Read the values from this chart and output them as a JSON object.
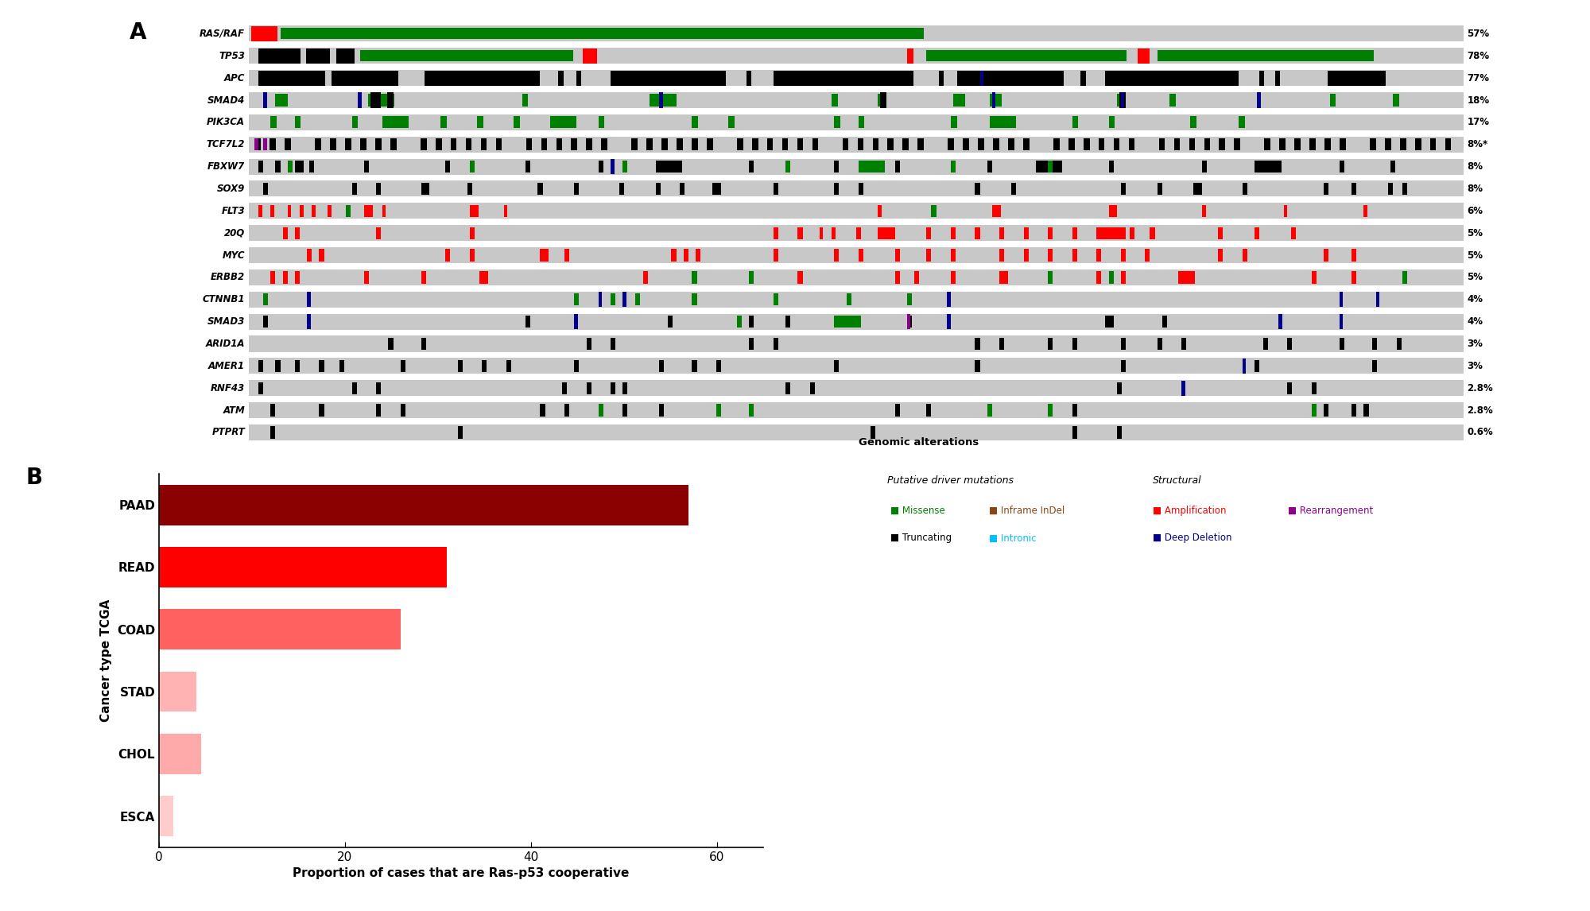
{
  "panel_A": {
    "genes": [
      "RAS/RAF",
      "TP53",
      "APC",
      "SMAD4",
      "PIK3CA",
      "TCF7L2",
      "FBXW7",
      "SOX9",
      "FLT3",
      "20Q",
      "MYC",
      "ERBB2",
      "CTNNB1",
      "SMAD3",
      "ARID1A",
      "AMER1",
      "RNF43",
      "ATM",
      "PTPRT"
    ],
    "percentages": [
      "57%",
      "78%",
      "77%",
      "18%",
      "17%",
      "8%*",
      "8%",
      "8%",
      "6%",
      "5%",
      "5%",
      "5%",
      "4%",
      "4%",
      "3%",
      "3%",
      "2.8%",
      "2.8%",
      "0.6%"
    ],
    "bg_color": "#c8c8c8",
    "colors": {
      "missense": "#008000",
      "truncating": "#000000",
      "inframe_indel": "#8B4513",
      "intronic": "#00BFFF",
      "amplification": "#FF0000",
      "rearrangement": "#8B008B",
      "deep_deletion": "#00008B"
    }
  },
  "panel_B": {
    "categories": [
      "PAAD",
      "READ",
      "COAD",
      "STAD",
      "CHOL",
      "ESCA"
    ],
    "values": [
      57,
      31,
      26,
      4,
      4.5,
      1.5
    ],
    "colors": [
      "#8B0000",
      "#FF0000",
      "#FF6060",
      "#FFB3B3",
      "#FFAAAA",
      "#FFCCCC"
    ],
    "xlabel": "Proportion of cases that are Ras-p53 cooperative",
    "ylabel": "Cancer type TCGA",
    "xlim": [
      0,
      65
    ],
    "xticks": [
      0,
      20,
      40,
      60
    ]
  },
  "legend": {
    "title": "Genomic alterations",
    "putative_title": "Putative driver mutations",
    "structural_title": "Structural",
    "items_putative": [
      {
        "label": "Missense",
        "color": "#008000"
      },
      {
        "label": "Inframe InDel",
        "color": "#8B4513"
      },
      {
        "label": "Truncating",
        "color": "#000000"
      },
      {
        "label": "Intronic",
        "color": "#00BFFF"
      }
    ],
    "items_structural": [
      {
        "label": "Amplification",
        "color": "#FF0000"
      },
      {
        "label": "Rearrangement",
        "color": "#8B008B"
      },
      {
        "label": "Deep Deletion",
        "color": "#00008B"
      }
    ]
  }
}
